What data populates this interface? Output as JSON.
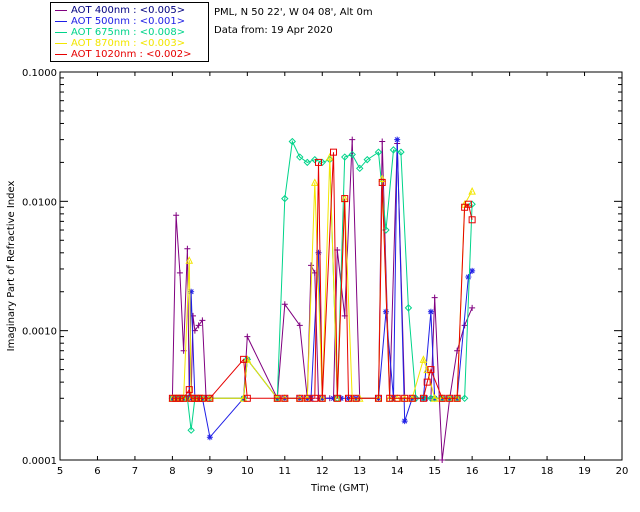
{
  "header": {
    "site_line": "PML, N 50 22', W 04 08', Alt 0m",
    "date_line": "Data from: 19 Apr 2020"
  },
  "legend": [
    {
      "label": "AOT  400nm : <0.005>",
      "color": "#000080",
      "line_color": "#800080"
    },
    {
      "label": "AOT  500nm : <0.001>",
      "color": "#1e1ee6",
      "line_color": "#1e1ee6"
    },
    {
      "label": "AOT  675nm : <0.008>",
      "color": "#00d48a",
      "line_color": "#00d48a"
    },
    {
      "label": "AOT  870nm : <0.003>",
      "color": "#f2e600",
      "line_color": "#f2e600"
    },
    {
      "label": "AOT 1020nm : <0.002>",
      "color": "#e60000",
      "line_color": "#e60000"
    }
  ],
  "chart_data": {
    "type": "line",
    "title": "",
    "xlabel": "Time (GMT)",
    "ylabel": "Imaginary Part of Refractive Index",
    "xlim": [
      5,
      20
    ],
    "ylim": [
      0.0001,
      0.1
    ],
    "y_scale": "log",
    "x_ticks": [
      "5",
      "6",
      "7",
      "8",
      "9",
      "10",
      "11",
      "12",
      "13",
      "14",
      "15",
      "16",
      "17",
      "18",
      "19",
      "20"
    ],
    "y_ticks": [
      "0.0001",
      "0.0010",
      "0.0100",
      "0.1000"
    ],
    "series": [
      {
        "name": "AOT 400nm",
        "color": "#800080",
        "marker": "plus",
        "x": [
          8.0,
          8.1,
          8.2,
          8.3,
          8.4,
          8.45,
          8.5,
          8.55,
          8.6,
          8.7,
          8.8,
          8.9,
          9.0,
          9.9,
          10.0,
          10.8,
          11.0,
          11.4,
          11.6,
          11.7,
          11.8,
          11.9,
          12.0,
          12.2,
          12.3,
          12.4,
          12.6,
          12.8,
          13.0,
          13.5,
          13.6,
          13.8,
          14.0,
          14.2,
          14.5,
          14.8,
          14.9,
          15.0,
          15.2,
          15.4,
          15.6,
          15.8,
          16.0
        ],
        "y": [
          0.0003,
          0.0078,
          0.0028,
          0.0007,
          0.0043,
          0.0003,
          0.0003,
          0.0013,
          0.001,
          0.0011,
          0.0012,
          0.0003,
          0.0003,
          0.0003,
          0.0009,
          0.0003,
          0.0016,
          0.0011,
          0.0003,
          0.0032,
          0.0028,
          0.0003,
          0.0003,
          0.0003,
          0.0003,
          0.0042,
          0.0013,
          0.03,
          0.0003,
          0.0003,
          0.029,
          0.0003,
          0.028,
          0.0003,
          0.0003,
          0.0003,
          0.0003,
          0.0018,
          0.0001,
          0.0003,
          0.0007,
          0.0011,
          0.0015
        ]
      },
      {
        "name": "AOT 500nm",
        "color": "#1e1ee6",
        "marker": "asterisk",
        "x": [
          8.0,
          8.1,
          8.2,
          8.3,
          8.45,
          8.5,
          8.6,
          8.7,
          8.8,
          9.0,
          9.9,
          10.0,
          10.8,
          11.0,
          11.4,
          11.6,
          11.7,
          11.9,
          12.0,
          12.3,
          12.5,
          12.7,
          12.9,
          13.5,
          13.7,
          13.9,
          14.0,
          14.2,
          14.4,
          14.7,
          14.9,
          15.0,
          15.2,
          15.4,
          15.6,
          15.9,
          16.0
        ],
        "y": [
          0.0003,
          0.0003,
          0.0003,
          0.0003,
          0.0003,
          0.002,
          0.0003,
          0.0003,
          0.0003,
          0.00015,
          0.0003,
          0.0006,
          0.0003,
          0.0003,
          0.0003,
          0.0003,
          0.0003,
          0.004,
          0.0003,
          0.0003,
          0.0003,
          0.0003,
          0.0003,
          0.0003,
          0.0014,
          0.0003,
          0.03,
          0.0002,
          0.0003,
          0.0003,
          0.0014,
          0.0003,
          0.0003,
          0.0003,
          0.0003,
          0.0026,
          0.0029
        ]
      },
      {
        "name": "AOT 675nm",
        "color": "#00d48a",
        "marker": "diamond",
        "x": [
          8.0,
          8.1,
          8.2,
          8.3,
          8.4,
          8.5,
          8.6,
          8.7,
          8.8,
          9.0,
          9.9,
          10.0,
          10.8,
          11.0,
          11.2,
          11.4,
          11.6,
          11.8,
          12.0,
          12.2,
          12.4,
          12.6,
          12.8,
          13.0,
          13.2,
          13.5,
          13.7,
          13.9,
          14.1,
          14.3,
          14.5,
          14.7,
          14.9,
          15.0,
          15.2,
          15.4,
          15.6,
          15.8,
          16.0
        ],
        "y": [
          0.0003,
          0.0003,
          0.0003,
          0.0003,
          0.0003,
          0.00017,
          0.0003,
          0.0003,
          0.0003,
          0.0003,
          0.0003,
          0.0006,
          0.0003,
          0.0105,
          0.029,
          0.022,
          0.02,
          0.021,
          0.02,
          0.021,
          0.0003,
          0.022,
          0.023,
          0.018,
          0.021,
          0.024,
          0.006,
          0.025,
          0.024,
          0.0015,
          0.0003,
          0.0003,
          0.0003,
          0.0003,
          0.0003,
          0.0003,
          0.0003,
          0.0003,
          0.0095
        ]
      },
      {
        "name": "AOT 870nm",
        "color": "#f2e600",
        "marker": "triangle",
        "x": [
          8.0,
          8.1,
          8.2,
          8.3,
          8.45,
          8.5,
          8.6,
          8.7,
          8.8,
          9.0,
          9.9,
          10.0,
          10.8,
          11.0,
          11.4,
          11.6,
          11.8,
          12.0,
          12.2,
          12.4,
          12.6,
          12.8,
          13.0,
          13.5,
          13.6,
          13.8,
          14.0,
          14.2,
          14.4,
          14.7,
          14.8,
          15.0,
          15.2,
          15.4,
          15.6,
          15.8,
          16.0
        ],
        "y": [
          0.0003,
          0.0003,
          0.0003,
          0.0003,
          0.0035,
          0.0003,
          0.0003,
          0.0003,
          0.0003,
          0.0003,
          0.0003,
          0.0006,
          0.0003,
          0.0003,
          0.0003,
          0.0003,
          0.014,
          0.0003,
          0.022,
          0.0003,
          0.0105,
          0.0003,
          0.0003,
          0.0003,
          0.015,
          0.0003,
          0.0003,
          0.0003,
          0.0003,
          0.0006,
          0.0005,
          0.0003,
          0.0003,
          0.0003,
          0.0003,
          0.0095,
          0.012
        ]
      },
      {
        "name": "AOT 1020nm",
        "color": "#e60000",
        "marker": "square",
        "x": [
          8.0,
          8.1,
          8.2,
          8.3,
          8.45,
          8.5,
          8.6,
          8.7,
          8.8,
          9.0,
          9.9,
          10.0,
          10.8,
          11.0,
          11.4,
          11.6,
          11.8,
          11.9,
          12.0,
          12.3,
          12.4,
          12.6,
          12.7,
          12.9,
          13.5,
          13.6,
          13.8,
          14.0,
          14.2,
          14.4,
          14.7,
          14.8,
          14.9,
          15.2,
          15.4,
          15.6,
          15.8,
          15.9,
          16.0
        ],
        "y": [
          0.0003,
          0.0003,
          0.0003,
          0.0003,
          0.00035,
          0.0003,
          0.0003,
          0.0003,
          0.0003,
          0.0003,
          0.0006,
          0.0003,
          0.0003,
          0.0003,
          0.0003,
          0.0003,
          0.0003,
          0.02,
          0.0003,
          0.024,
          0.0003,
          0.0105,
          0.0003,
          0.0003,
          0.0003,
          0.014,
          0.0003,
          0.0003,
          0.0003,
          0.0003,
          0.0003,
          0.0004,
          0.0005,
          0.0003,
          0.0003,
          0.0003,
          0.009,
          0.0095,
          0.0072
        ]
      }
    ]
  }
}
